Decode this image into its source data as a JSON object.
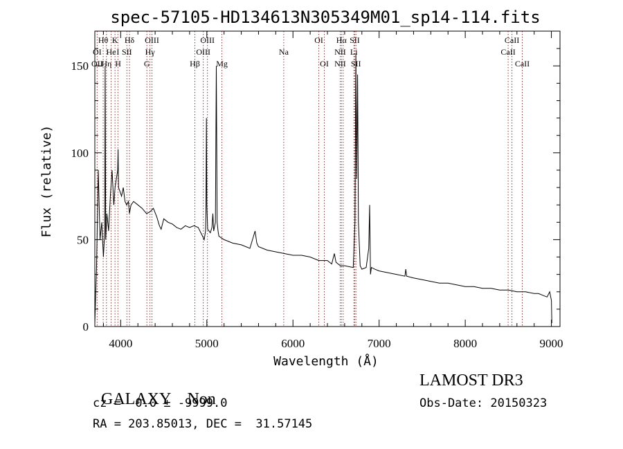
{
  "chart_data": {
    "type": "line",
    "title": "spec-57105-HD134613N305349M01_sp14-114.fits",
    "xlabel": "Wavelength (Å)",
    "ylabel": "Flux (relative)",
    "xlim": [
      3700,
      9100
    ],
    "ylim": [
      0,
      170
    ],
    "x_ticks": [
      4000,
      5000,
      6000,
      7000,
      8000,
      9000
    ],
    "x_tick_labels": [
      "4000",
      "5000",
      "6000",
      "7000",
      "8000",
      "9000"
    ],
    "y_ticks": [
      0,
      50,
      100,
      150
    ],
    "y_tick_labels": [
      "0",
      "50",
      "100",
      "150"
    ],
    "grid": false,
    "legend": "none",
    "series": [
      {
        "x": [
          3700,
          3720,
          3740,
          3760,
          3780,
          3800,
          3815,
          3820,
          3826,
          3840,
          3860,
          3880,
          3900,
          3920,
          3935,
          3950,
          3965,
          3970,
          3975,
          3990,
          4010,
          4030,
          4050,
          4070,
          4090,
          4102,
          4120,
          4150,
          4200,
          4250,
          4300,
          4340,
          4380,
          4420,
          4450,
          4470,
          4500,
          4550,
          4600,
          4650,
          4700,
          4750,
          4800,
          4850,
          4900,
          4950,
          4970,
          4985,
          4990,
          4995,
          5000,
          5010,
          5040,
          5060,
          5070,
          5080,
          5100,
          5110,
          5120,
          5130,
          5140,
          5200,
          5300,
          5400,
          5500,
          5560,
          5580,
          5600,
          5700,
          5800,
          5900,
          6000,
          6100,
          6200,
          6300,
          6400,
          6450,
          6480,
          6500,
          6550,
          6600,
          6700,
          6720,
          6730,
          6740,
          6750,
          6760,
          6780,
          6800,
          6850,
          6880,
          6890,
          6900,
          6910,
          6950,
          7000,
          7100,
          7200,
          7300,
          7310,
          7320,
          7400,
          7500,
          7600,
          7700,
          7800,
          7900,
          8000,
          8100,
          8200,
          8300,
          8400,
          8500,
          8600,
          8700,
          8800,
          8850,
          8900,
          8950,
          8980,
          9000,
          9005
        ],
        "y": [
          2,
          35,
          90,
          50,
          60,
          40,
          55,
          150,
          50,
          65,
          55,
          75,
          90,
          70,
          80,
          85,
          90,
          102,
          80,
          78,
          75,
          80,
          72,
          70,
          72,
          65,
          70,
          72,
          70,
          68,
          65,
          66,
          68,
          63,
          58,
          56,
          62,
          60,
          59,
          57,
          56,
          58,
          57,
          58,
          57,
          52,
          50,
          55,
          65,
          120,
          70,
          56,
          54,
          57,
          65,
          55,
          60,
          150,
          60,
          55,
          52,
          50,
          48,
          47,
          45,
          55,
          48,
          46,
          44,
          43,
          42,
          41,
          41,
          40,
          38,
          38,
          36,
          42,
          37,
          35,
          35,
          34,
          60,
          157,
          85,
          145,
          60,
          35,
          33,
          34,
          45,
          70,
          30,
          34,
          33,
          32,
          31,
          30,
          29,
          33,
          29,
          28,
          27,
          26,
          25,
          25,
          24,
          23,
          23,
          22,
          22,
          21,
          21,
          20,
          20,
          19,
          19,
          18,
          17,
          20,
          15,
          2
        ]
      }
    ],
    "line_labels": [
      {
        "x": 3727,
        "row": 2,
        "label": "OII"
      },
      {
        "x": 3727,
        "row": 1,
        "label": "OI"
      },
      {
        "x": 3797,
        "row": 0,
        "label": "Hθ"
      },
      {
        "x": 3835,
        "row": 2,
        "label": "Hη"
      },
      {
        "x": 3889,
        "row": 1,
        "label": "He"
      },
      {
        "x": 3934,
        "row": 0,
        "label": "K"
      },
      {
        "x": 3968,
        "row": 1,
        "label": "I"
      },
      {
        "x": 3970,
        "row": 2,
        "label": "H"
      },
      {
        "x": 4072,
        "row": 1,
        "label": "SII"
      },
      {
        "x": 4102,
        "row": 0,
        "label": "Hδ"
      },
      {
        "x": 4304,
        "row": 2,
        "label": "G"
      },
      {
        "x": 4340,
        "row": 1,
        "label": "Hγ"
      },
      {
        "x": 4363,
        "row": 0,
        "label": "OIII"
      },
      {
        "x": 4861,
        "row": 2,
        "label": "Hβ"
      },
      {
        "x": 4959,
        "row": 1,
        "label": "OIII"
      },
      {
        "x": 5007,
        "row": 0,
        "label": "OIII"
      },
      {
        "x": 5175,
        "row": 2,
        "label": "Mg"
      },
      {
        "x": 5893,
        "row": 1,
        "label": "Na"
      },
      {
        "x": 6300,
        "row": 0,
        "label": "OI"
      },
      {
        "x": 6364,
        "row": 2,
        "label": "OI"
      },
      {
        "x": 6548,
        "row": 1,
        "label": "NII"
      },
      {
        "x": 6548,
        "row": 2,
        "label": "NII"
      },
      {
        "x": 6563,
        "row": 0,
        "label": "Hα"
      },
      {
        "x": 6717,
        "row": 0,
        "label": "SII"
      },
      {
        "x": 6707,
        "row": 1,
        "label": "Li"
      },
      {
        "x": 6731,
        "row": 2,
        "label": "SII"
      },
      {
        "x": 8498,
        "row": 1,
        "label": "CaII"
      },
      {
        "x": 8542,
        "row": 0,
        "label": "CaII"
      },
      {
        "x": 8662,
        "row": 2,
        "label": "CaII"
      }
    ],
    "line_markers": [
      3727,
      3797,
      3835,
      3889,
      3934,
      3968,
      4072,
      4102,
      4304,
      4340,
      4363,
      4861,
      4959,
      5007,
      5175,
      5893,
      6300,
      6364,
      6548,
      6563,
      6583,
      6707,
      6717,
      6731,
      8498,
      8542,
      8662
    ]
  },
  "info": {
    "class": "GALAXY",
    "subclass": "Non",
    "redshift": "cz =  0.0 ± -9999.0",
    "coords": "RA = 203.85013, DEC =  31.57145",
    "survey": "LAMOST DR3",
    "obs_date": "Obs-Date: 20150323"
  },
  "colors": {
    "spectrum": "#000000",
    "marker_line": "#b22222"
  }
}
